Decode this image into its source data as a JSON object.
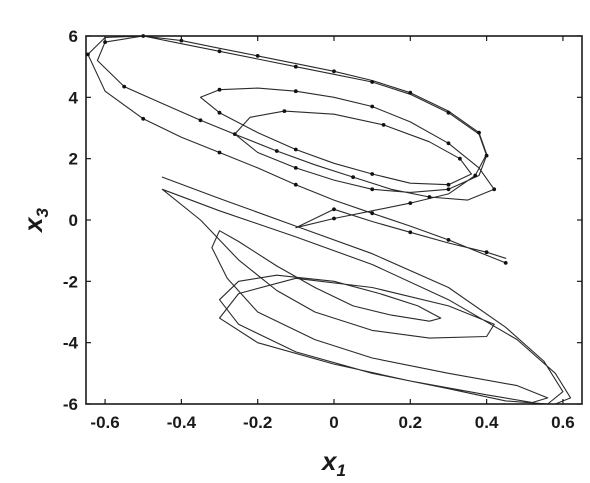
{
  "chart_data": {
    "type": "line",
    "title": "",
    "xlabel": {
      "base": "x",
      "sub": "1"
    },
    "ylabel": {
      "base": "x",
      "sub": "3"
    },
    "xlim": [
      -0.65,
      0.65
    ],
    "ylim": [
      -6,
      6
    ],
    "xticks": [
      -0.6,
      -0.4,
      -0.2,
      0,
      0.2,
      0.4,
      0.6
    ],
    "xtick_labels": [
      "-0.6",
      "-0.4",
      "-0.2",
      "0",
      "0.2",
      "0.4",
      "0.6"
    ],
    "yticks": [
      -6,
      -4,
      -2,
      0,
      2,
      4,
      6
    ],
    "ytick_labels": [
      "-6",
      "-4",
      "-2",
      "0",
      "2",
      "4",
      "6"
    ],
    "grid": false,
    "series": [
      {
        "style": "line-with-dot-markers",
        "color": "#2b2b2b",
        "marker_every": 2,
        "points": [
          [
            0.45,
            -1.4
          ],
          [
            0.4,
            -1.15
          ],
          [
            0.3,
            -0.65
          ],
          [
            0.2,
            -0.2
          ],
          [
            0.1,
            0.22
          ],
          [
            0.0,
            0.65
          ],
          [
            -0.1,
            1.15
          ],
          [
            -0.2,
            1.7
          ],
          [
            -0.3,
            2.2
          ],
          [
            -0.4,
            2.7
          ],
          [
            -0.5,
            3.3
          ],
          [
            -0.6,
            4.2
          ],
          [
            -0.645,
            5.4
          ],
          [
            -0.6,
            5.95
          ],
          [
            -0.5,
            6.0
          ],
          [
            -0.4,
            5.75
          ],
          [
            -0.3,
            5.5
          ],
          [
            -0.2,
            5.25
          ],
          [
            -0.1,
            5.0
          ],
          [
            0.0,
            4.75
          ],
          [
            0.1,
            4.5
          ],
          [
            0.2,
            4.1
          ],
          [
            0.3,
            3.5
          ],
          [
            0.38,
            2.8
          ],
          [
            0.4,
            2.1
          ],
          [
            0.38,
            1.45
          ],
          [
            0.3,
            1.0
          ],
          [
            0.2,
            0.9
          ],
          [
            0.1,
            1.0
          ],
          [
            0.0,
            1.3
          ],
          [
            -0.1,
            1.7
          ],
          [
            -0.2,
            2.2
          ],
          [
            -0.26,
            2.8
          ],
          [
            -0.22,
            3.35
          ],
          [
            -0.13,
            3.55
          ],
          [
            0.0,
            3.45
          ],
          [
            0.13,
            3.1
          ],
          [
            0.25,
            2.55
          ],
          [
            0.33,
            2.0
          ],
          [
            0.36,
            1.5
          ],
          [
            0.3,
            1.15
          ],
          [
            0.2,
            1.2
          ],
          [
            0.1,
            1.5
          ],
          [
            0.0,
            1.85
          ],
          [
            -0.1,
            2.3
          ],
          [
            -0.2,
            2.85
          ],
          [
            -0.3,
            3.5
          ],
          [
            -0.35,
            4.0
          ],
          [
            -0.3,
            4.25
          ],
          [
            -0.2,
            4.3
          ],
          [
            -0.1,
            4.2
          ],
          [
            0.0,
            4.0
          ],
          [
            0.1,
            3.7
          ],
          [
            0.2,
            3.2
          ],
          [
            0.3,
            2.5
          ],
          [
            0.38,
            1.7
          ],
          [
            0.42,
            1.0
          ],
          [
            0.35,
            0.65
          ],
          [
            0.25,
            0.75
          ],
          [
            0.15,
            1.0
          ],
          [
            0.05,
            1.4
          ],
          [
            -0.05,
            1.8
          ],
          [
            -0.15,
            2.25
          ],
          [
            -0.25,
            2.75
          ],
          [
            -0.35,
            3.25
          ],
          [
            -0.45,
            3.8
          ],
          [
            -0.55,
            4.35
          ],
          [
            -0.62,
            5.2
          ],
          [
            -0.6,
            5.8
          ],
          [
            -0.5,
            6.0
          ],
          [
            -0.4,
            5.85
          ],
          [
            -0.3,
            5.6
          ],
          [
            -0.2,
            5.35
          ],
          [
            -0.1,
            5.1
          ],
          [
            0.0,
            4.85
          ],
          [
            0.1,
            4.55
          ],
          [
            0.2,
            4.15
          ],
          [
            0.3,
            3.55
          ],
          [
            0.38,
            2.85
          ],
          [
            0.4,
            2.15
          ],
          [
            0.37,
            1.45
          ],
          [
            0.3,
            0.85
          ],
          [
            0.2,
            0.55
          ],
          [
            0.1,
            0.3
          ],
          [
            0.0,
            0.05
          ],
          [
            -0.1,
            -0.25
          ],
          [
            0.0,
            0.35
          ],
          [
            0.1,
            -0.05
          ],
          [
            0.2,
            -0.4
          ],
          [
            0.3,
            -0.75
          ],
          [
            0.4,
            -1.05
          ],
          [
            0.45,
            -1.25
          ]
        ]
      },
      {
        "style": "line",
        "color": "#2b2b2b",
        "points": [
          [
            -0.45,
            1.4
          ],
          [
            -0.3,
            0.7
          ],
          [
            -0.1,
            -0.2
          ],
          [
            0.1,
            -1.1
          ],
          [
            0.3,
            -2.2
          ],
          [
            0.45,
            -3.5
          ],
          [
            0.55,
            -4.6
          ],
          [
            0.6,
            -5.6
          ],
          [
            0.56,
            -6.0
          ],
          [
            0.45,
            -5.9
          ],
          [
            0.3,
            -5.5
          ],
          [
            0.1,
            -5.0
          ],
          [
            -0.1,
            -4.3
          ],
          [
            -0.25,
            -3.4
          ],
          [
            -0.3,
            -2.6
          ],
          [
            -0.25,
            -2.0
          ],
          [
            -0.15,
            -1.8
          ],
          [
            0.0,
            -2.0
          ],
          [
            0.12,
            -2.4
          ],
          [
            0.22,
            -2.8
          ],
          [
            0.28,
            -3.2
          ],
          [
            0.25,
            -3.3
          ],
          [
            0.15,
            -3.1
          ],
          [
            0.05,
            -2.8
          ],
          [
            -0.05,
            -2.2
          ],
          [
            -0.15,
            -1.5
          ],
          [
            -0.25,
            -0.7
          ],
          [
            -0.3,
            -0.35
          ],
          [
            -0.32,
            -0.9
          ],
          [
            -0.28,
            -1.9
          ],
          [
            -0.2,
            -3.0
          ],
          [
            -0.05,
            -3.9
          ],
          [
            0.1,
            -4.5
          ],
          [
            0.3,
            -5.0
          ],
          [
            0.48,
            -5.4
          ],
          [
            0.56,
            -5.8
          ],
          [
            0.52,
            -5.95
          ],
          [
            0.4,
            -5.7
          ],
          [
            0.2,
            -5.25
          ],
          [
            0.0,
            -4.7
          ],
          [
            -0.2,
            -4.0
          ],
          [
            -0.3,
            -3.2
          ],
          [
            -0.25,
            -2.4
          ],
          [
            -0.1,
            -1.9
          ],
          [
            0.1,
            -2.2
          ],
          [
            0.3,
            -2.8
          ],
          [
            0.42,
            -3.4
          ],
          [
            0.4,
            -3.8
          ],
          [
            0.25,
            -3.85
          ],
          [
            0.1,
            -3.6
          ],
          [
            -0.05,
            -3.0
          ],
          [
            -0.15,
            -2.3
          ],
          [
            -0.25,
            -1.3
          ],
          [
            -0.35,
            0.0
          ],
          [
            -0.45,
            1.0
          ],
          [
            -0.3,
            0.3
          ],
          [
            -0.1,
            -0.55
          ],
          [
            0.1,
            -1.45
          ],
          [
            0.3,
            -2.6
          ],
          [
            0.48,
            -3.9
          ],
          [
            0.58,
            -5.0
          ],
          [
            0.62,
            -5.8
          ],
          [
            0.58,
            -6.0
          ]
        ]
      }
    ]
  }
}
